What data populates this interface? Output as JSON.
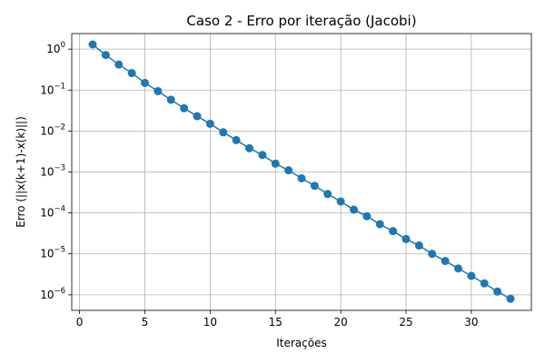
{
  "chart_data": {
    "type": "line",
    "title": "Caso 2 - Erro por iteração (Jacobi)",
    "xlabel": "Iterações",
    "ylabel": "Erro (||x(k+1)-x(k)||)",
    "yscale": "log",
    "xlim": [
      -0.6,
      34.6
    ],
    "ylim_log10": [
      -6.38,
      0.38
    ],
    "grid": true,
    "marker": "circle",
    "color": "#1f77b4",
    "x_ticks": [
      0,
      5,
      10,
      15,
      20,
      25,
      30
    ],
    "y_ticks": [
      {
        "exp": 0,
        "base": "10",
        "sup": "0"
      },
      {
        "exp": -1,
        "base": "10",
        "sup": "−1"
      },
      {
        "exp": -2,
        "base": "10",
        "sup": "−2"
      },
      {
        "exp": -3,
        "base": "10",
        "sup": "−3"
      },
      {
        "exp": -4,
        "base": "10",
        "sup": "−4"
      },
      {
        "exp": -5,
        "base": "10",
        "sup": "−5"
      },
      {
        "exp": -6,
        "base": "10",
        "sup": "−6"
      }
    ],
    "series": [
      {
        "x": [
          1,
          2,
          3,
          4,
          5,
          6,
          7,
          8,
          9,
          10,
          11,
          12,
          13,
          14,
          15,
          16,
          17,
          18,
          19,
          20,
          21,
          22,
          23,
          24,
          25,
          26,
          27,
          28,
          29,
          30,
          31,
          32,
          33
        ],
        "y": [
          1.3,
          0.72,
          0.42,
          0.26,
          0.15,
          0.094,
          0.058,
          0.036,
          0.023,
          0.015,
          0.0093,
          0.006,
          0.0038,
          0.0026,
          0.0016,
          0.0011,
          0.0007,
          0.00046,
          0.00029,
          0.00019,
          0.00012,
          8.3e-05,
          5.3e-05,
          3.6e-05,
          2.3e-05,
          1.6e-05,
          1e-05,
          6.7e-06,
          4.4e-06,
          2.9e-06,
          1.9e-06,
          1.2e-06,
          8e-07
        ]
      }
    ]
  }
}
